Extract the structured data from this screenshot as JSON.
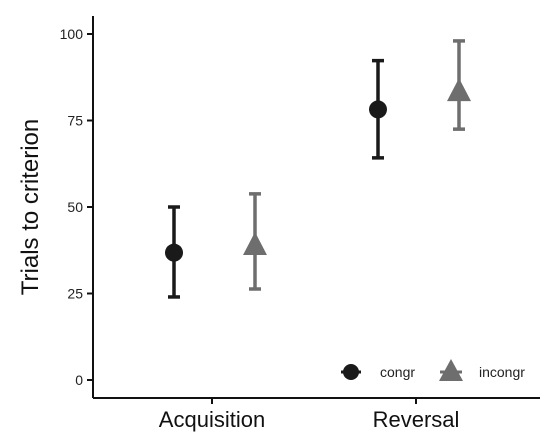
{
  "chart_data": {
    "type": "scatter",
    "title": "",
    "xlabel": "",
    "ylabel": "Trials to criterion",
    "categories": [
      "Acquisition",
      "Reversal"
    ],
    "ylim": [
      0,
      100
    ],
    "yticks": [
      0,
      25,
      50,
      75,
      100
    ],
    "grid": false,
    "legend_position": "bottom-right",
    "series": [
      {
        "name": "congr",
        "marker": "circle",
        "color": "#1a1a1a",
        "values": [
          36.8,
          78.2
        ],
        "err_low": [
          24.0,
          64.2
        ],
        "err_high": [
          50.0,
          92.3
        ]
      },
      {
        "name": "incongr",
        "marker": "triangle",
        "color": "#6e6e6e",
        "values": [
          39.0,
          83.5
        ],
        "err_low": [
          26.3,
          72.5
        ],
        "err_high": [
          53.8,
          98.0
        ]
      }
    ]
  }
}
